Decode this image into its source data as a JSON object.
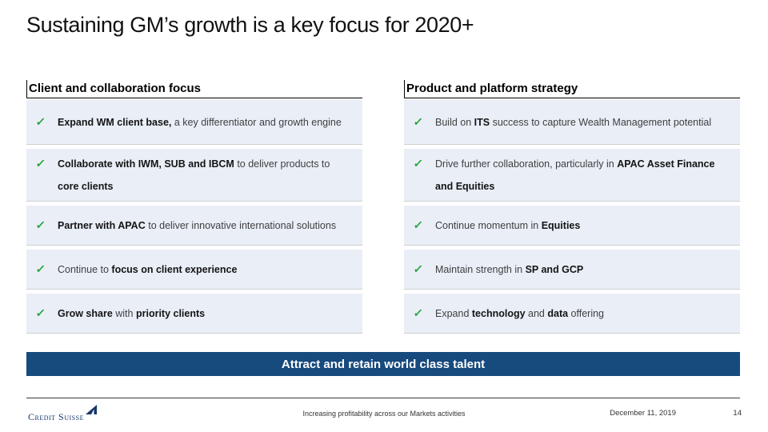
{
  "title": "Sustaining GM’s growth is a key focus for 2020+",
  "icons": {
    "check": "✓"
  },
  "colors": {
    "row_bg": "#e9eef7",
    "banner_bg": "#174a7d",
    "check_green": "#24a339",
    "logo_navy": "#15356b"
  },
  "columns": [
    {
      "header": "Client and collaboration focus",
      "items": [
        {
          "segments": [
            {
              "text": "Expand WM client base,",
              "bold": true
            },
            {
              "text": " a key differentiator and growth engine",
              "bold": false
            }
          ]
        },
        {
          "segments": [
            {
              "text": "Collaborate with IWM, SUB and IBCM",
              "bold": true
            },
            {
              "text": " to deliver products to ",
              "bold": false
            },
            {
              "text": "core clients",
              "bold": true
            }
          ]
        },
        {
          "segments": [
            {
              "text": "Partner with APAC",
              "bold": true
            },
            {
              "text": " to deliver innovative international solutions",
              "bold": false
            }
          ]
        },
        {
          "segments": [
            {
              "text": "Continue to ",
              "bold": false
            },
            {
              "text": "focus on client experience",
              "bold": true
            }
          ]
        },
        {
          "segments": [
            {
              "text": "Grow share",
              "bold": true
            },
            {
              "text": " with ",
              "bold": false
            },
            {
              "text": "priority clients",
              "bold": true
            }
          ]
        }
      ]
    },
    {
      "header": "Product and platform strategy",
      "items": [
        {
          "segments": [
            {
              "text": "Build on ",
              "bold": false
            },
            {
              "text": "ITS",
              "bold": true
            },
            {
              "text": " success to capture Wealth Management potential",
              "bold": false
            }
          ]
        },
        {
          "segments": [
            {
              "text": "Drive further collaboration, particularly in ",
              "bold": false
            },
            {
              "text": "APAC Asset Finance and Equities",
              "bold": true
            }
          ]
        },
        {
          "segments": [
            {
              "text": "Continue momentum in ",
              "bold": false
            },
            {
              "text": "Equities",
              "bold": true
            }
          ]
        },
        {
          "segments": [
            {
              "text": "Maintain strength in ",
              "bold": false
            },
            {
              "text": "SP and GCP",
              "bold": true
            }
          ]
        },
        {
          "segments": [
            {
              "text": "Expand ",
              "bold": false
            },
            {
              "text": "technology",
              "bold": true
            },
            {
              "text": " and ",
              "bold": false
            },
            {
              "text": "data",
              "bold": true
            },
            {
              "text": " offering",
              "bold": false
            }
          ]
        }
      ]
    }
  ],
  "banner": "Attract and retain world class talent",
  "footer": {
    "logo_text": "Credit Suisse",
    "center_text": "Increasing profitability across our Markets activities",
    "date": "December 11, 2019",
    "page": "14"
  }
}
